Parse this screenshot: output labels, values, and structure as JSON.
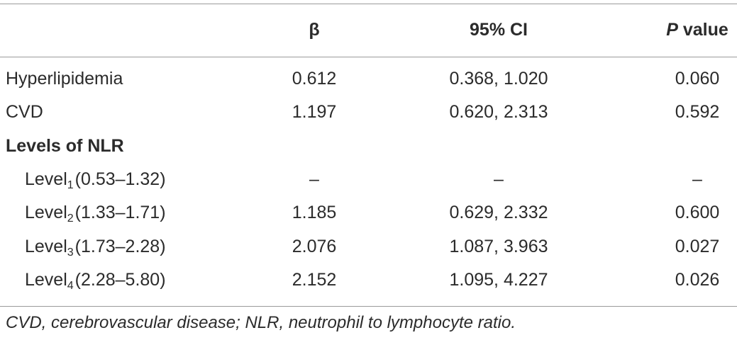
{
  "table": {
    "columns": [
      "β",
      "95% CI",
      {
        "italic": "P",
        "text": "value"
      }
    ],
    "rows": [
      {
        "label": "Hyperlipidemia",
        "cells": [
          "0.612",
          "0.368, 1.020",
          "0.060"
        ]
      },
      {
        "label": "CVD",
        "cells": [
          "1.197",
          "0.620, 2.313",
          "0.592"
        ]
      },
      {
        "section": "Levels of NLR"
      },
      {
        "label": {
          "text": "Level",
          "sub": "1",
          "range": "(0.53–1.32)"
        },
        "cells": [
          "–",
          "–",
          "–"
        ]
      },
      {
        "label": {
          "text": "Level",
          "sub": "2",
          "range": "(1.33–1.71)"
        },
        "cells": [
          "1.185",
          "0.629, 2.332",
          "0.600"
        ]
      },
      {
        "label": {
          "text": "Level",
          "sub": "3",
          "range": "(1.73–2.28)"
        },
        "cells": [
          "2.076",
          "1.087, 3.963",
          "0.027"
        ]
      },
      {
        "label": {
          "text": "Level",
          "sub": "4",
          "range": "(2.28–5.80)"
        },
        "cells": [
          "2.152",
          "1.095, 4.227",
          "0.026"
        ]
      }
    ],
    "footnote": "CVD, cerebrovascular disease; NLR, neutrophil to lymphocyte ratio."
  }
}
